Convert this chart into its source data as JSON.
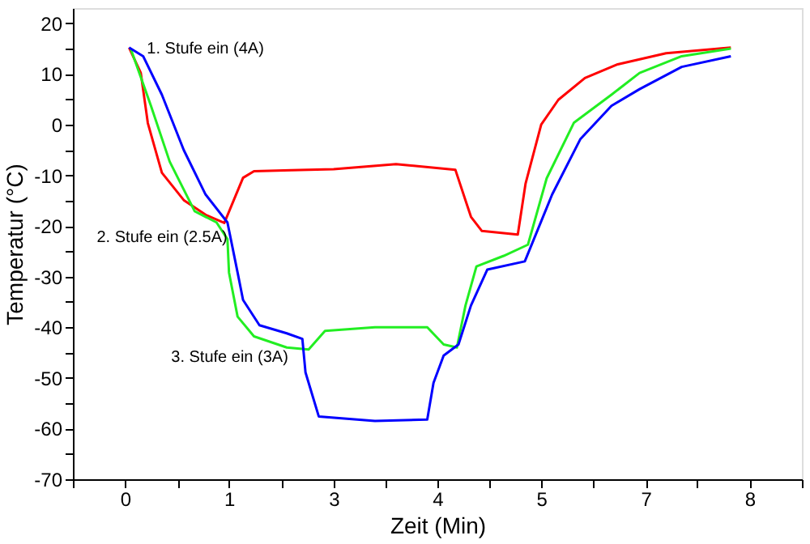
{
  "chart_data": {
    "type": "line",
    "xlabel": "Zeit (Min)",
    "ylabel": "Temperatur (°C)",
    "xlim": [
      -0.67,
      8.67
    ],
    "xticks": [
      {
        "value": -0.67,
        "label": null
      },
      {
        "value": 0,
        "label": "0"
      },
      {
        "value": 0.67,
        "label": null
      },
      {
        "value": 1.33,
        "label": "1"
      },
      {
        "value": 2,
        "label": null
      },
      {
        "value": 2.67,
        "label": "3"
      },
      {
        "value": 3.33,
        "label": null
      },
      {
        "value": 4,
        "label": "4"
      },
      {
        "value": 4.67,
        "label": null
      },
      {
        "value": 5.33,
        "label": "5"
      },
      {
        "value": 6,
        "label": null
      },
      {
        "value": 6.67,
        "label": "7"
      },
      {
        "value": 7.33,
        "label": null
      },
      {
        "value": 8,
        "label": "8"
      },
      {
        "value": 8.67,
        "label": null
      }
    ],
    "ylim": [
      -70,
      23
    ],
    "yticks": [
      -70,
      {
        "value": -65,
        "label": null
      },
      -60,
      {
        "value": -55,
        "label": null
      },
      -50,
      {
        "value": -45,
        "label": null
      },
      -40,
      {
        "value": -35,
        "label": null
      },
      -30,
      {
        "value": -25,
        "label": null
      },
      -20,
      {
        "value": -15,
        "label": null
      },
      -10,
      {
        "value": -5,
        "label": null
      },
      0,
      {
        "value": 5,
        "label": null
      },
      10,
      {
        "value": 15,
        "label": null
      },
      20
    ],
    "grid": false,
    "marker": "none",
    "line_style": "solid",
    "annotations": [
      {
        "text": "1. Stufe ein (4A)",
        "x": 0.07,
        "y": 15
      },
      {
        "text": "2. Stufe ein (2.5A)",
        "x": 1.33,
        "y": -21
      },
      {
        "text": "3. Stufe ein (3A)",
        "x": 2.13,
        "y": -44
      }
    ],
    "series": [
      {
        "color": "#ff0000",
        "x": [
          0.05,
          0.2,
          0.29,
          0.47,
          0.75,
          1.03,
          1.27,
          1.51,
          1.65,
          2.13,
          2.67,
          3.47,
          4.23,
          4.43,
          4.57,
          5.03,
          5.13,
          5.33,
          5.55,
          5.89,
          6.31,
          6.93,
          7.76
        ],
        "values": [
          15.2,
          10.2,
          0.3,
          -9.5,
          -14.9,
          -17.8,
          -19.4,
          -10.5,
          -9.2,
          -9.0,
          -8.8,
          -7.8,
          -8.9,
          -18.2,
          -21,
          -21.7,
          -11.6,
          0,
          4.9,
          9.2,
          11.9,
          14.1,
          15.2
        ]
      },
      {
        "color": "#22ee22",
        "x": [
          0.07,
          0.33,
          0.57,
          0.89,
          1.17,
          1.31,
          1.33,
          1.44,
          1.65,
          2.07,
          2.35,
          2.56,
          3.2,
          3.87,
          4.08,
          4.25,
          4.36,
          4.5,
          4.85,
          5.16,
          5.4,
          5.75,
          6.23,
          6.59,
          7.13,
          7.76
        ],
        "values": [
          15,
          3.7,
          -7.3,
          -17.1,
          -19.3,
          -22.6,
          -29.2,
          -37.9,
          -41.8,
          -44,
          -44.4,
          -40.7,
          -40,
          -40,
          -43.4,
          -44,
          -35.7,
          -28,
          -25.9,
          -23.7,
          -10.6,
          0.4,
          5.9,
          10.2,
          13.5,
          15
        ]
      },
      {
        "color": "#0000ff",
        "x": [
          0.05,
          0.23,
          0.47,
          0.75,
          1.03,
          1.31,
          1.44,
          1.51,
          1.72,
          2.07,
          2.27,
          2.31,
          2.48,
          3.2,
          3.87,
          3.95,
          4.08,
          4.27,
          4.43,
          4.64,
          5.12,
          5.47,
          5.83,
          6.23,
          6.59,
          7.13,
          7.76
        ],
        "values": [
          15.2,
          13.5,
          5.9,
          -5,
          -13.8,
          -19.3,
          -29.2,
          -34.6,
          -39.6,
          -41.2,
          -42.3,
          -48.9,
          -57.6,
          -58.5,
          -58.2,
          -51,
          -45.6,
          -43.4,
          -35.7,
          -28.6,
          -27,
          -13.8,
          -2.9,
          3.7,
          7,
          11.4,
          13.5
        ]
      }
    ]
  }
}
